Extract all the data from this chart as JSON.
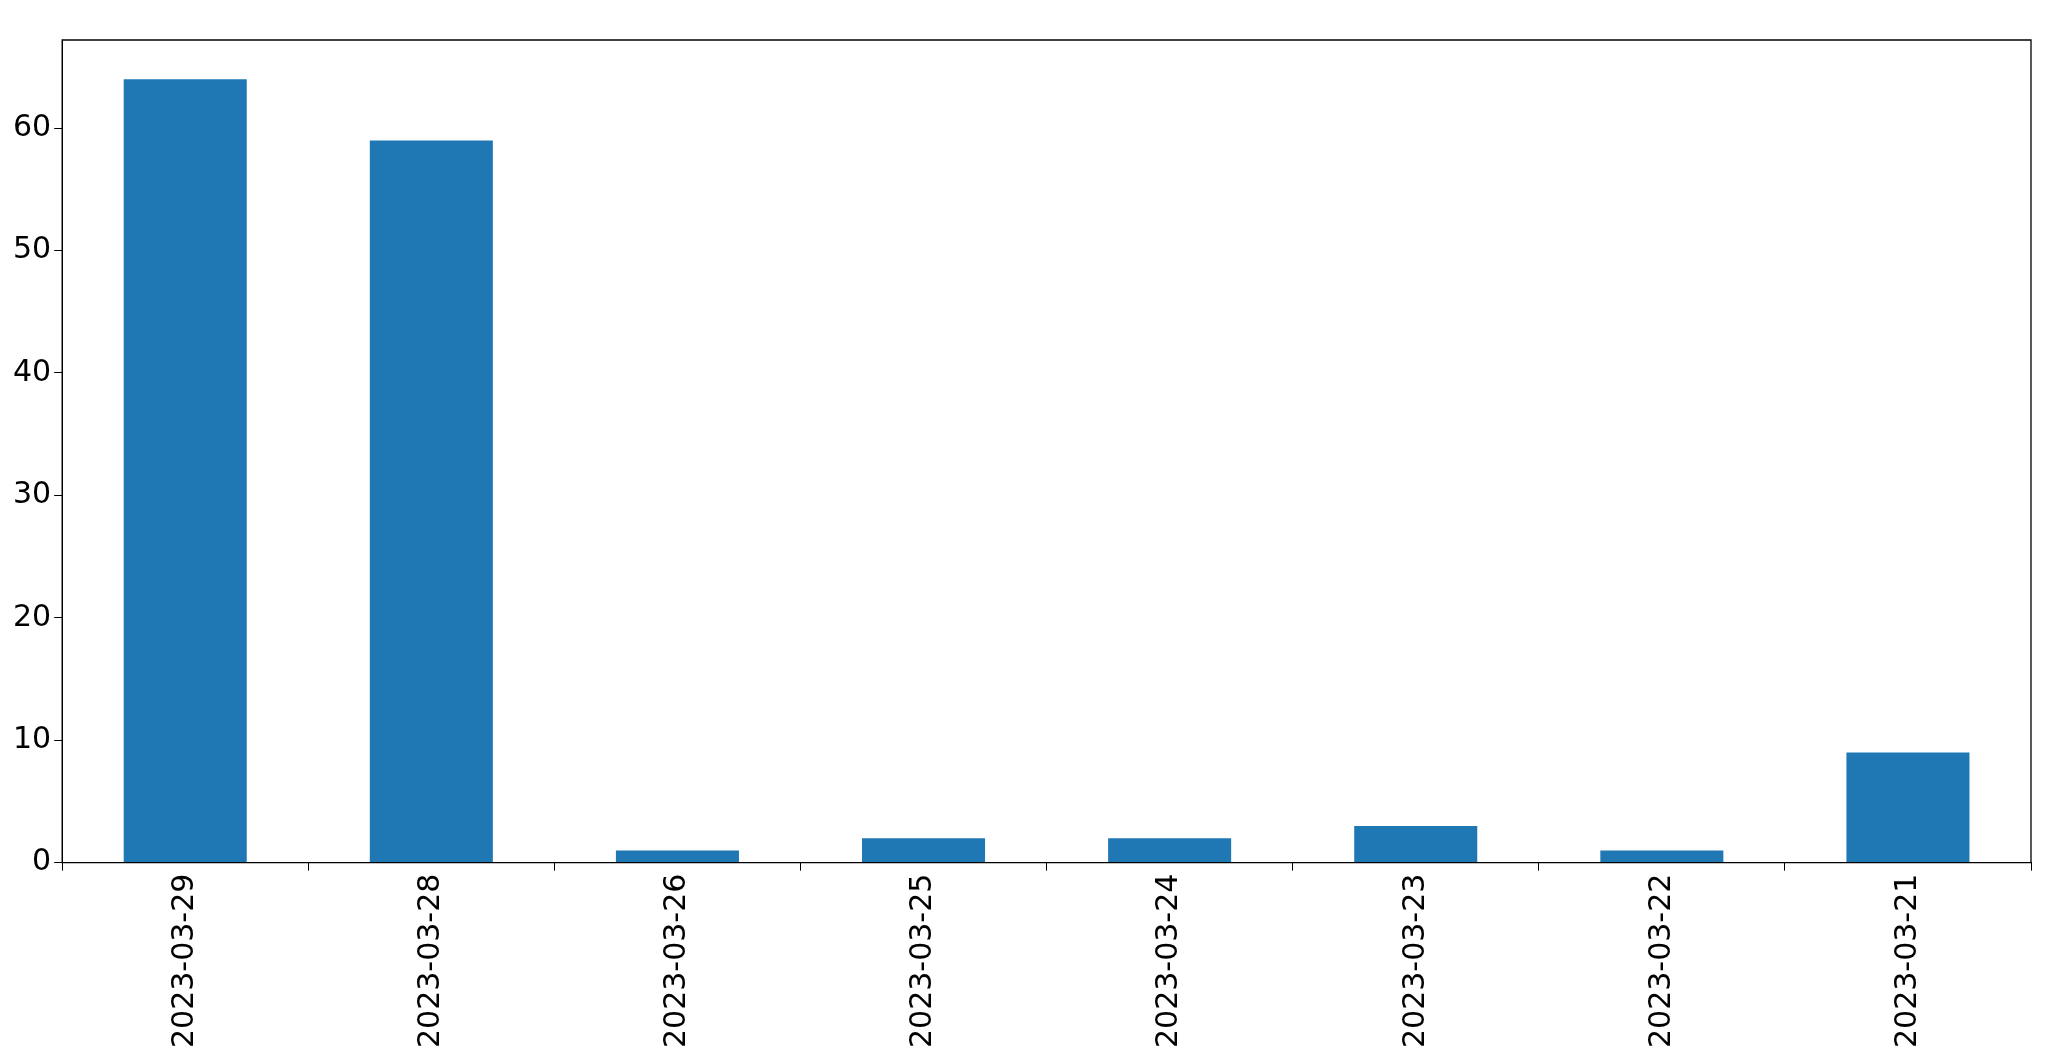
{
  "chart_data": {
    "type": "bar",
    "categories": [
      "2023-03-29",
      "2023-03-28",
      "2023-03-26",
      "2023-03-25",
      "2023-03-24",
      "2023-03-23",
      "2023-03-22",
      "2023-03-21"
    ],
    "values": [
      64,
      59,
      1,
      2,
      2,
      3,
      1,
      9
    ],
    "color": "#1f77b4",
    "ylim": [
      0,
      67.2
    ],
    "yticks": [
      0,
      10,
      20,
      30,
      40,
      50,
      60
    ],
    "grid": false,
    "legend": false
  }
}
